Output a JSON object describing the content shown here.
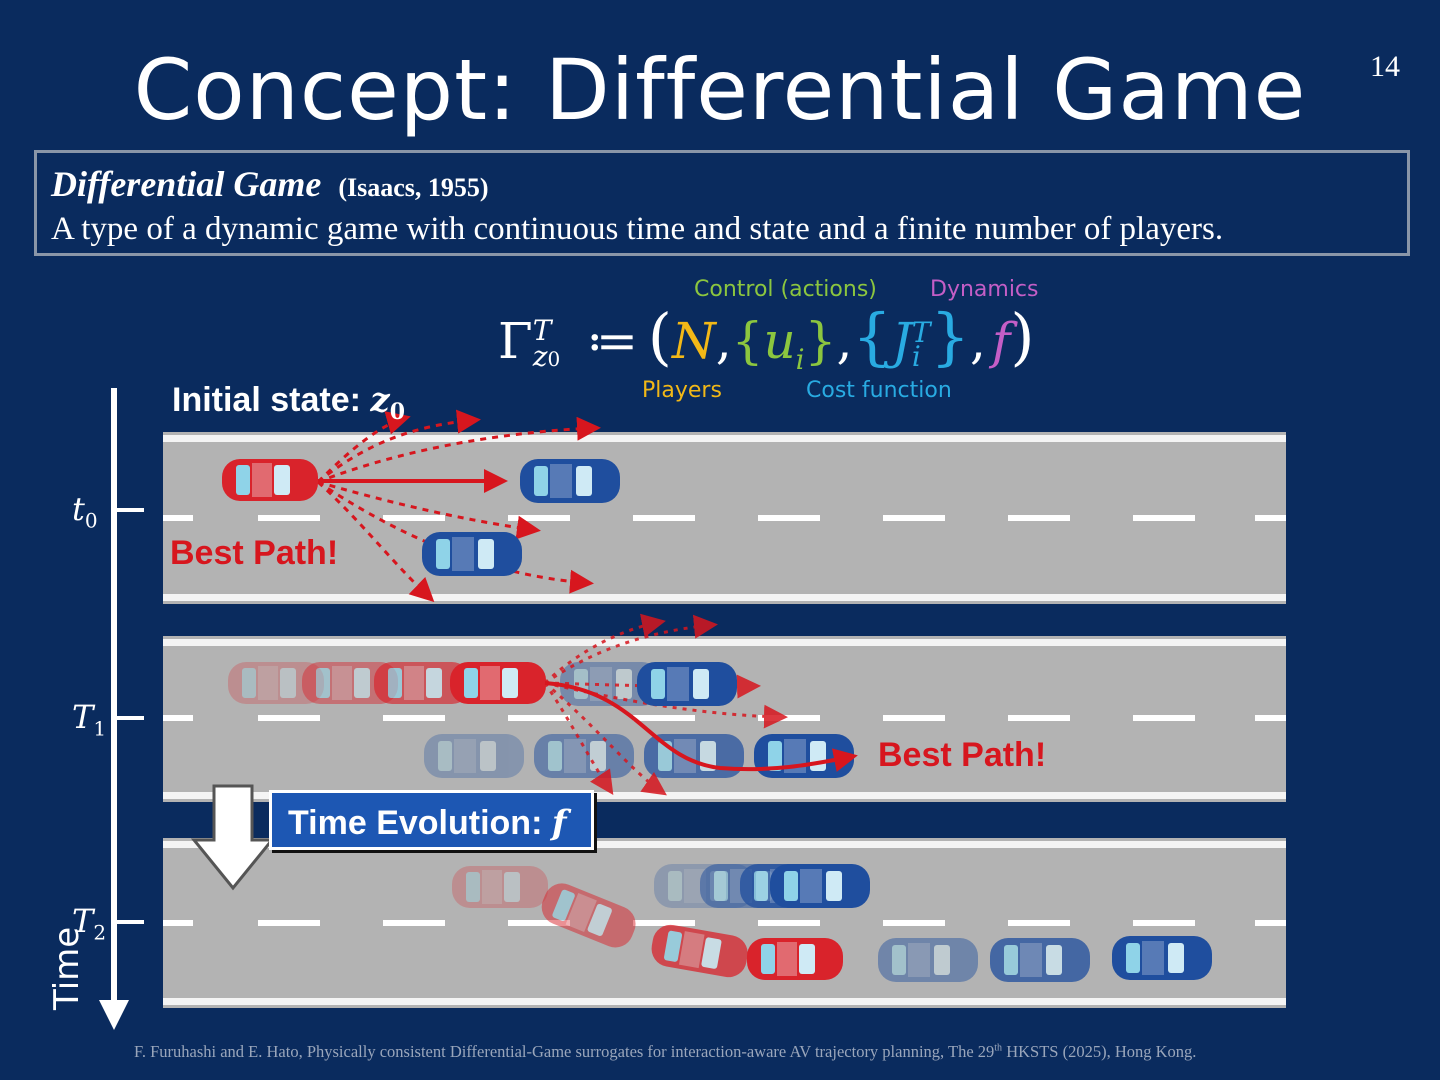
{
  "slide": {
    "title": "Concept: Differential Game",
    "page_number": "14"
  },
  "definition": {
    "term": "Differential Game",
    "citation": "(Isaacs, 1955)",
    "text": "A type of a dynamic game with continuous time and state and a finite number of players."
  },
  "formula": {
    "lhs": "Γ",
    "lhs_sub": "z",
    "lhs_sub_index": "0",
    "lhs_sup": "T",
    "assign": "≔",
    "players_symbol": "N",
    "control_symbol": "u",
    "control_index": "i",
    "cost_symbol": "J",
    "cost_index": "i",
    "cost_sup": "T",
    "dynamics_symbol": "f",
    "labels": {
      "control": "Control (actions)",
      "dynamics": "Dynamics",
      "players": "Players",
      "cost": "Cost function"
    },
    "colors": {
      "players": "#f2b817",
      "control": "#8cc63f",
      "cost": "#29abe2",
      "dynamics": "#c45ec6"
    }
  },
  "diagram": {
    "initial_state_label": "Initial state:",
    "initial_state_symbol": "z",
    "initial_state_index": "0",
    "best_path_label_1": "Best Path!",
    "best_path_label_2": "Best Path!",
    "time_evolution_label": "Time Evolution:",
    "time_evolution_symbol": "f",
    "axis_label": "Time",
    "time_marks": [
      {
        "symbol": "t",
        "index": "0"
      },
      {
        "symbol": "T",
        "index": "1"
      },
      {
        "symbol": "T",
        "index": "2"
      }
    ],
    "colors": {
      "ego_car": "#d9232b",
      "other_car": "#1f4e9e",
      "road": "#b3b3b3",
      "path": "#d7161e"
    }
  },
  "footer": {
    "text_before": "F. Furuhashi and E. Hato, Physically consistent  Differential-Game surrogates for interaction-aware AV trajectory planning, The 29",
    "sup": "th",
    "text_after": " HKSTS (2025), Hong Kong."
  }
}
